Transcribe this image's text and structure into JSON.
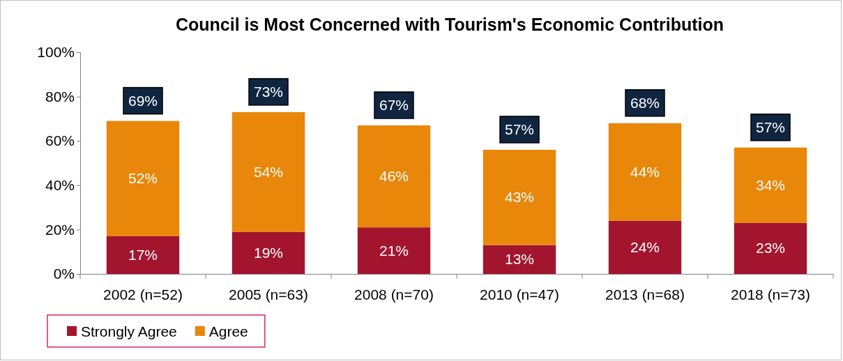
{
  "chart_data": {
    "type": "bar",
    "title": "Council is Most Concerned with Tourism's Economic Contribution",
    "categories": [
      "2002 (n=52)",
      "2005 (n=63)",
      "2008 (n=70)",
      "2010 (n=47)",
      "2013 (n=68)",
      "2018 (n=73)"
    ],
    "stacked": true,
    "ylim": [
      0,
      100
    ],
    "yticks": [
      {
        "value": 0,
        "label": "0%"
      },
      {
        "value": 20,
        "label": "20%"
      },
      {
        "value": 40,
        "label": "40%"
      },
      {
        "value": 60,
        "label": "60%"
      },
      {
        "value": 80,
        "label": "80%"
      },
      {
        "value": 100,
        "label": "100%"
      }
    ],
    "grid": false,
    "legend": "bottom left",
    "series": [
      {
        "name": "Strongly Agree",
        "color": "#a3152e",
        "values": [
          17,
          19,
          21,
          13,
          24,
          23
        ],
        "value_labels": [
          "17%",
          "19%",
          "21%",
          "13%",
          "24%",
          "23%"
        ]
      },
      {
        "name": "Agree",
        "color": "#e8870a",
        "values": [
          52,
          54,
          46,
          43,
          44,
          34
        ],
        "value_labels": [
          "52%",
          "54%",
          "46%",
          "43%",
          "44%",
          "34%"
        ]
      }
    ],
    "totals": [
      "69%",
      "73%",
      "67%",
      "57%",
      "68%",
      "57%"
    ]
  }
}
